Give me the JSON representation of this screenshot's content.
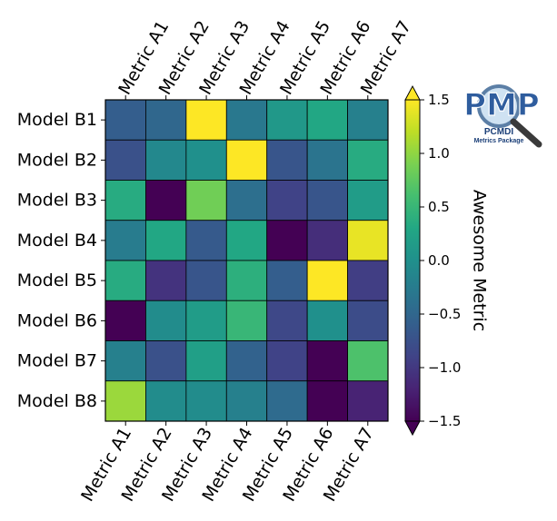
{
  "chart_data": {
    "type": "heatmap",
    "rows": [
      "Model B1",
      "Model B2",
      "Model B3",
      "Model B4",
      "Model B5",
      "Model B6",
      "Model B7",
      "Model B8"
    ],
    "columns": [
      "Metric A1",
      "Metric A2",
      "Metric A3",
      "Metric A4",
      "Metric A5",
      "Metric A6",
      "Metric A7"
    ],
    "values": [
      [
        -0.6,
        -0.5,
        1.6,
        -0.3,
        0.1,
        0.3,
        -0.2
      ],
      [
        -0.75,
        -0.1,
        0.0,
        1.6,
        -0.7,
        -0.35,
        0.35
      ],
      [
        0.35,
        -1.6,
        0.85,
        -0.4,
        -0.9,
        -0.7,
        0.15
      ],
      [
        -0.25,
        0.3,
        -0.65,
        0.3,
        -1.6,
        -1.1,
        1.4
      ],
      [
        0.35,
        -1.05,
        -0.7,
        0.4,
        -0.6,
        1.6,
        -0.95
      ],
      [
        -1.6,
        -0.05,
        0.15,
        0.5,
        -0.85,
        0.0,
        -0.8
      ],
      [
        -0.2,
        -0.75,
        0.2,
        -0.55,
        -0.9,
        -1.55,
        0.65
      ],
      [
        1.05,
        -0.05,
        -0.05,
        -0.2,
        -0.45,
        -1.55,
        -1.2
      ]
    ],
    "colorbar": {
      "label": "Awesome Metric",
      "vmin": -1.5,
      "vmax": 1.5,
      "ticks": [
        -1.5,
        -1.0,
        -0.5,
        0.0,
        0.5,
        1.0,
        1.5
      ],
      "tick_labels": [
        "−1.5",
        "−1.0",
        "−0.5",
        "0.0",
        "0.5",
        "1.0",
        "1.5"
      ],
      "extend": "both"
    },
    "colormap": "viridis"
  },
  "logo": {
    "letters": "PMP",
    "line1": "PCMDI",
    "line2": "Metrics Package"
  }
}
